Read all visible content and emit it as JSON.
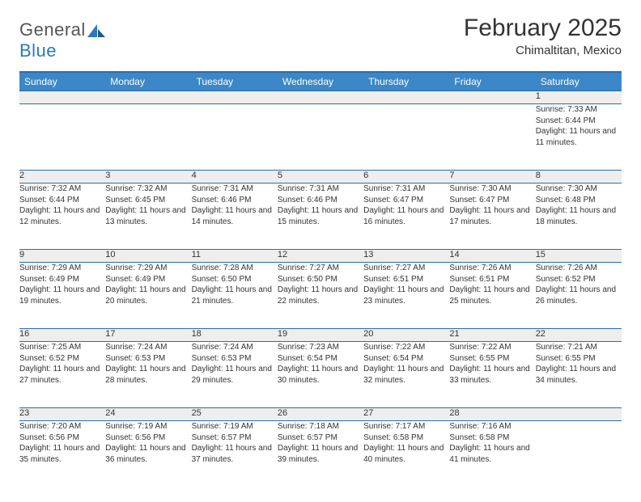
{
  "brand": {
    "part1": "General",
    "part2": "Blue"
  },
  "title": "February 2025",
  "location": "Chimaltitan, Mexico",
  "colors": {
    "header_bg": "#3b87c8",
    "header_border": "#2a6ea8",
    "daynum_bg": "#eeeeee",
    "text": "#333333",
    "brand_gray": "#555555",
    "brand_blue": "#2a7ab9"
  },
  "weekdays": [
    "Sunday",
    "Monday",
    "Tuesday",
    "Wednesday",
    "Thursday",
    "Friday",
    "Saturday"
  ],
  "weeks": [
    [
      null,
      null,
      null,
      null,
      null,
      null,
      {
        "n": "1",
        "sr": "7:33 AM",
        "ss": "6:44 PM",
        "dl": "11 hours and 11 minutes."
      }
    ],
    [
      {
        "n": "2",
        "sr": "7:32 AM",
        "ss": "6:44 PM",
        "dl": "11 hours and 12 minutes."
      },
      {
        "n": "3",
        "sr": "7:32 AM",
        "ss": "6:45 PM",
        "dl": "11 hours and 13 minutes."
      },
      {
        "n": "4",
        "sr": "7:31 AM",
        "ss": "6:46 PM",
        "dl": "11 hours and 14 minutes."
      },
      {
        "n": "5",
        "sr": "7:31 AM",
        "ss": "6:46 PM",
        "dl": "11 hours and 15 minutes."
      },
      {
        "n": "6",
        "sr": "7:31 AM",
        "ss": "6:47 PM",
        "dl": "11 hours and 16 minutes."
      },
      {
        "n": "7",
        "sr": "7:30 AM",
        "ss": "6:47 PM",
        "dl": "11 hours and 17 minutes."
      },
      {
        "n": "8",
        "sr": "7:30 AM",
        "ss": "6:48 PM",
        "dl": "11 hours and 18 minutes."
      }
    ],
    [
      {
        "n": "9",
        "sr": "7:29 AM",
        "ss": "6:49 PM",
        "dl": "11 hours and 19 minutes."
      },
      {
        "n": "10",
        "sr": "7:29 AM",
        "ss": "6:49 PM",
        "dl": "11 hours and 20 minutes."
      },
      {
        "n": "11",
        "sr": "7:28 AM",
        "ss": "6:50 PM",
        "dl": "11 hours and 21 minutes."
      },
      {
        "n": "12",
        "sr": "7:27 AM",
        "ss": "6:50 PM",
        "dl": "11 hours and 22 minutes."
      },
      {
        "n": "13",
        "sr": "7:27 AM",
        "ss": "6:51 PM",
        "dl": "11 hours and 23 minutes."
      },
      {
        "n": "14",
        "sr": "7:26 AM",
        "ss": "6:51 PM",
        "dl": "11 hours and 25 minutes."
      },
      {
        "n": "15",
        "sr": "7:26 AM",
        "ss": "6:52 PM",
        "dl": "11 hours and 26 minutes."
      }
    ],
    [
      {
        "n": "16",
        "sr": "7:25 AM",
        "ss": "6:52 PM",
        "dl": "11 hours and 27 minutes."
      },
      {
        "n": "17",
        "sr": "7:24 AM",
        "ss": "6:53 PM",
        "dl": "11 hours and 28 minutes."
      },
      {
        "n": "18",
        "sr": "7:24 AM",
        "ss": "6:53 PM",
        "dl": "11 hours and 29 minutes."
      },
      {
        "n": "19",
        "sr": "7:23 AM",
        "ss": "6:54 PM",
        "dl": "11 hours and 30 minutes."
      },
      {
        "n": "20",
        "sr": "7:22 AM",
        "ss": "6:54 PM",
        "dl": "11 hours and 32 minutes."
      },
      {
        "n": "21",
        "sr": "7:22 AM",
        "ss": "6:55 PM",
        "dl": "11 hours and 33 minutes."
      },
      {
        "n": "22",
        "sr": "7:21 AM",
        "ss": "6:55 PM",
        "dl": "11 hours and 34 minutes."
      }
    ],
    [
      {
        "n": "23",
        "sr": "7:20 AM",
        "ss": "6:56 PM",
        "dl": "11 hours and 35 minutes."
      },
      {
        "n": "24",
        "sr": "7:19 AM",
        "ss": "6:56 PM",
        "dl": "11 hours and 36 minutes."
      },
      {
        "n": "25",
        "sr": "7:19 AM",
        "ss": "6:57 PM",
        "dl": "11 hours and 37 minutes."
      },
      {
        "n": "26",
        "sr": "7:18 AM",
        "ss": "6:57 PM",
        "dl": "11 hours and 39 minutes."
      },
      {
        "n": "27",
        "sr": "7:17 AM",
        "ss": "6:58 PM",
        "dl": "11 hours and 40 minutes."
      },
      {
        "n": "28",
        "sr": "7:16 AM",
        "ss": "6:58 PM",
        "dl": "11 hours and 41 minutes."
      },
      null
    ]
  ],
  "labels": {
    "sunrise": "Sunrise:",
    "sunset": "Sunset:",
    "daylight": "Daylight:"
  }
}
